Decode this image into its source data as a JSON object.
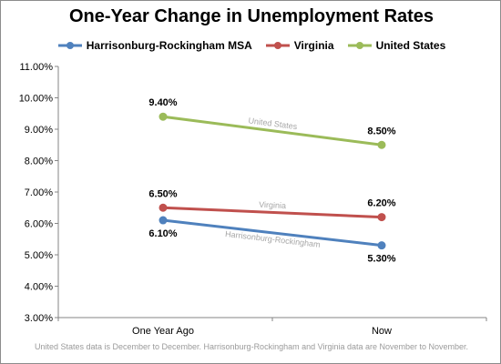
{
  "chart_data": {
    "type": "line",
    "title": "One-Year Change in Unemployment Rates",
    "categories": [
      "One Year Ago",
      "Now"
    ],
    "ylim": [
      3.0,
      11.0
    ],
    "ytick_step": 1.0,
    "yticks": [
      "3.00%",
      "4.00%",
      "5.00%",
      "6.00%",
      "7.00%",
      "8.00%",
      "9.00%",
      "10.00%",
      "11.00%"
    ],
    "grid": false,
    "legend_position": "top",
    "series": [
      {
        "name": "Harrisonburg-Rockingham MSA",
        "color": "#4f81bd",
        "values": [
          6.1,
          5.3
        ],
        "data_labels": [
          "6.10%",
          "5.30%"
        ],
        "line_label": "Harrisonburg-Rockingham"
      },
      {
        "name": "Virginia",
        "color": "#c0504d",
        "values": [
          6.5,
          6.2
        ],
        "data_labels": [
          "6.50%",
          "6.20%"
        ],
        "line_label": "Virginia"
      },
      {
        "name": "United States",
        "color": "#9bbb59",
        "values": [
          9.4,
          8.5
        ],
        "data_labels": [
          "9.40%",
          "8.50%"
        ],
        "line_label": "United States"
      }
    ],
    "footnote": "United States data is December to December.  Harrisonburg-Rockingham and Virginia data are November to November."
  }
}
